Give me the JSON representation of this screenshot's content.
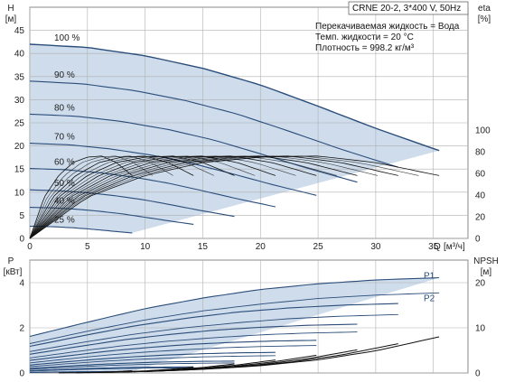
{
  "chart_data": [
    {
      "type": "line",
      "name_box": "CRNE 20-2, 3*400 V, 50Hz",
      "info_lines": [
        "Перекачиваемая жидкость = Вода",
        "Темп. жидкости = 20 °C",
        "Плотность = 998.2 кг/м³"
      ],
      "y_label": "H",
      "y_unit": "[м]",
      "y2_label": "eta",
      "y2_unit": "[%]",
      "x_label": "Q",
      "x_unit": "[м³/ч]",
      "xlim": [
        0,
        38
      ],
      "ylim": [
        0,
        50
      ],
      "y2lim": [
        0,
        100
      ],
      "x_ticks": [
        "0",
        "5",
        "10",
        "15",
        "20",
        "25",
        "30",
        "35"
      ],
      "y_ticks": [
        "0",
        "5",
        "10",
        "15",
        "20",
        "25",
        "30",
        "35",
        "40",
        "45"
      ],
      "y2_ticks": [
        "0",
        "20",
        "40",
        "60",
        "80",
        "100"
      ],
      "grid": true,
      "colors": {
        "curve": "#2b4d7a",
        "band": "#c5d6e8",
        "eta": "#111111",
        "grid": "#b0b0b0"
      },
      "speed_labels": [
        "100 %",
        "90 %",
        "80 %",
        "70 %",
        "60 %",
        "50 %",
        "40 %",
        "25 %"
      ],
      "speed_fractions": [
        1.0,
        0.9,
        0.8,
        0.7,
        0.6,
        0.5,
        0.4,
        0.25
      ],
      "qh_100": {
        "q": [
          0,
          5,
          10,
          15,
          20,
          25,
          30,
          35.5
        ],
        "h": [
          42.0,
          41.3,
          39.5,
          36.8,
          33.2,
          28.6,
          23.8,
          19.0
        ]
      },
      "eta_100": {
        "q": [
          0,
          5,
          10,
          15,
          20,
          25,
          30,
          35.5
        ],
        "eta": [
          0,
          38,
          58,
          70,
          75,
          76,
          70,
          58
        ]
      }
    },
    {
      "type": "line",
      "y_label": "P",
      "y_unit": "[кВт]",
      "y2_label": "NPSH",
      "y2_unit": "[м]",
      "xlim": [
        0,
        38
      ],
      "ylim": [
        0,
        5
      ],
      "y2lim": [
        0,
        25
      ],
      "y_ticks": [
        "0",
        "2",
        "4"
      ],
      "y2_ticks": [
        "0",
        "10",
        "20"
      ],
      "grid": true,
      "series_labels": [
        "P1",
        "P2"
      ],
      "p1_100": {
        "q": [
          0,
          5,
          10,
          15,
          20,
          25,
          30,
          35.5
        ],
        "p": [
          1.62,
          2.25,
          2.85,
          3.32,
          3.7,
          3.95,
          4.12,
          4.22
        ]
      },
      "p2_100": {
        "q": [
          0,
          5,
          10,
          15,
          20,
          25,
          30,
          35.5
        ],
        "p": [
          1.3,
          1.85,
          2.35,
          2.75,
          3.05,
          3.3,
          3.45,
          3.55
        ]
      },
      "npsh": {
        "q": [
          10,
          15,
          20,
          25,
          30,
          35.5
        ],
        "v": [
          0.3,
          0.8,
          1.6,
          2.9,
          4.9,
          8.0
        ]
      }
    }
  ]
}
